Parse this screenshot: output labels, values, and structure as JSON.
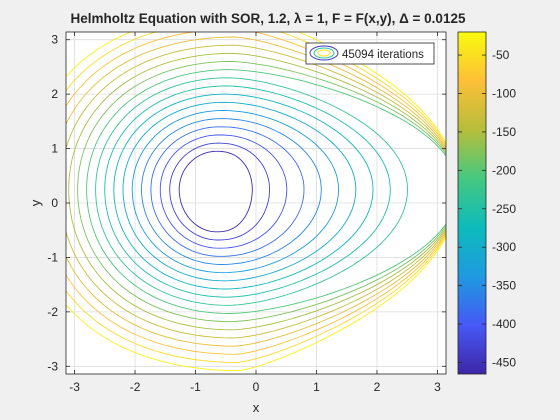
{
  "chart_data": {
    "type": "contour",
    "title": "Helmholtz Equation with SOR, 1.2, λ = 1, F = F(x,y), Δ = 0.0125",
    "xlabel": "x",
    "ylabel": "y",
    "xlim": [
      -3.1416,
      3.1416
    ],
    "ylim": [
      -3.1416,
      3.1416
    ],
    "x_ticks": [
      -3,
      -2,
      -1,
      0,
      1,
      2,
      3
    ],
    "y_ticks": [
      -3,
      -2,
      -1,
      0,
      1,
      2,
      3
    ],
    "grid": true,
    "legend": {
      "position": "top-right",
      "entries": [
        "45094 iterations"
      ]
    },
    "colorbar": {
      "position": "right",
      "range": [
        -465,
        -20
      ],
      "ticks": [
        -450,
        -400,
        -350,
        -300,
        -250,
        -200,
        -150,
        -100,
        -50
      ]
    },
    "colormap_stops": [
      "#3e26a8",
      "#4659f6",
      "#1e9ae0",
      "#0dbbbb",
      "#45c880",
      "#b6be3a",
      "#fdbf37",
      "#f9fb0e"
    ],
    "contours": {
      "center": [
        -0.65,
        0.25
      ],
      "num_levels": 18,
      "approximate_levels": [
        -455,
        -430,
        -405,
        -380,
        -355,
        -330,
        -305,
        -280,
        -255,
        -230,
        -205,
        -180,
        -155,
        -130,
        -105,
        -80,
        -55,
        -30
      ]
    }
  }
}
